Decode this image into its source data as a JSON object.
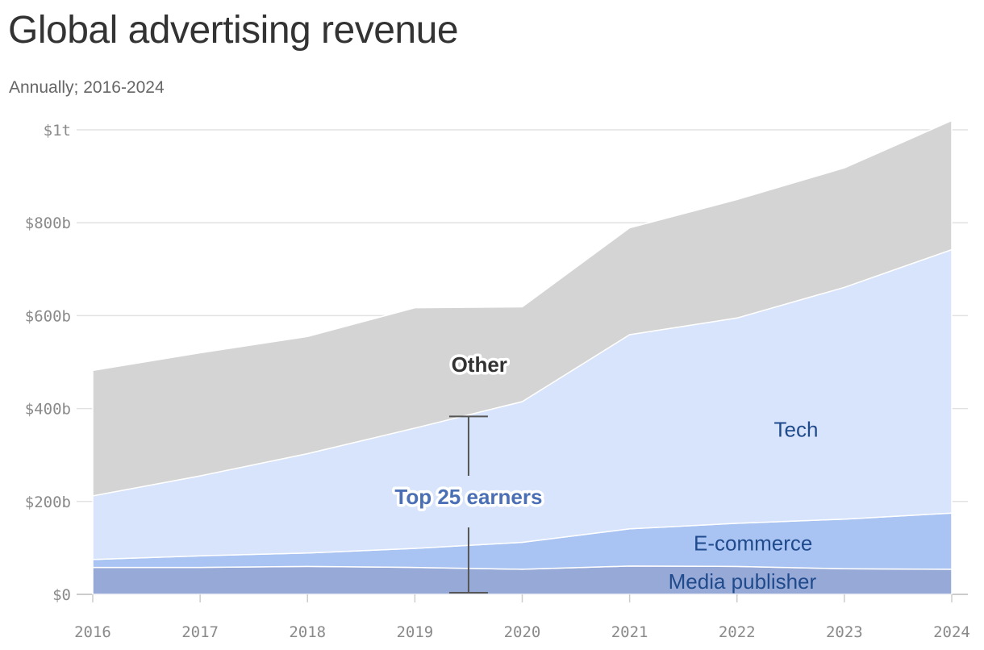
{
  "title": "Global advertising revenue",
  "subtitle": "Annually; 2016-2024",
  "chart_data": {
    "type": "area",
    "stacked": true,
    "x": [
      2016,
      2017,
      2018,
      2019,
      2020,
      2021,
      2022,
      2023,
      2024
    ],
    "ylim": [
      0,
      1000
    ],
    "yticks": [
      0,
      200,
      400,
      600,
      800,
      1000
    ],
    "ytick_labels": [
      "$0",
      "$200b",
      "$400b",
      "$600b",
      "$800b",
      "$1t"
    ],
    "xtick_labels": [
      "2016",
      "2017",
      "2018",
      "2019",
      "2020",
      "2021",
      "2022",
      "2023",
      "2024"
    ],
    "grid": true,
    "series": [
      {
        "name": "Media publisher",
        "color": "#97a9d6",
        "values": [
          58,
          58,
          60,
          58,
          54,
          61,
          60,
          55,
          54
        ]
      },
      {
        "name": "E-commerce",
        "color": "#a9c3f2",
        "values": [
          17,
          25,
          29,
          41,
          58,
          80,
          93,
          107,
          121
        ]
      },
      {
        "name": "Tech",
        "color": "#d8e4fb",
        "values": [
          137,
          172,
          214,
          259,
          303,
          418,
          442,
          499,
          567
        ]
      },
      {
        "name": "Other",
        "color": "#d4d4d4",
        "values": [
          270,
          265,
          252,
          259,
          204,
          230,
          255,
          257,
          278
        ]
      }
    ],
    "label_colors": {
      "Media publisher": "#1f4a8c",
      "E-commerce": "#1f4a8c",
      "Tech": "#1f4a8c",
      "Other": "#333333",
      "Top 25 earners": "#4a6fb5"
    },
    "annotation": {
      "text": "Top 25 earners",
      "from": 0,
      "to": 383,
      "x": 2019.5
    }
  }
}
